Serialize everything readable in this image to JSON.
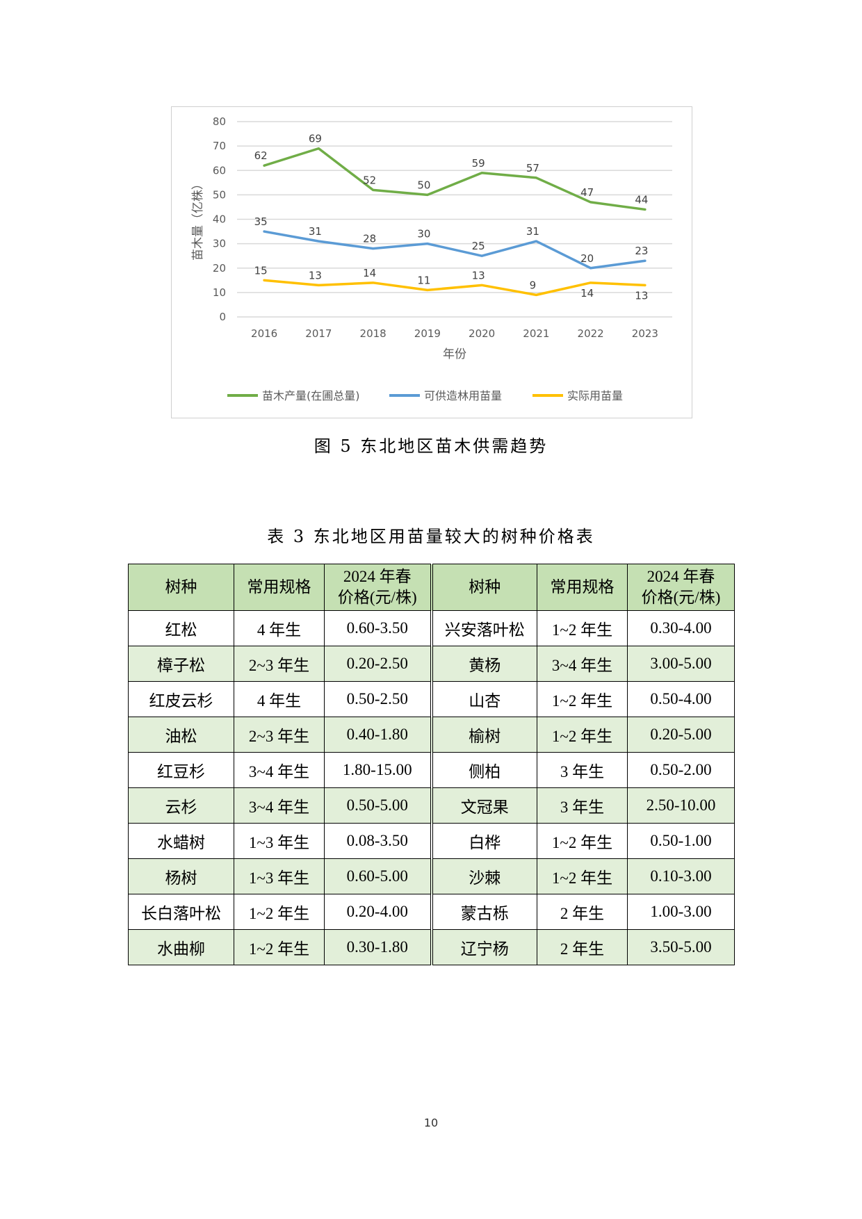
{
  "chart_data": {
    "type": "line",
    "x": [
      "2016",
      "2017",
      "2018",
      "2019",
      "2020",
      "2021",
      "2022",
      "2023"
    ],
    "series": [
      {
        "name": "苗木产量(在圃总量)",
        "color": "#70ad47",
        "values": [
          62,
          69,
          52,
          50,
          59,
          57,
          47,
          44
        ]
      },
      {
        "name": "可供造林用苗量",
        "color": "#5b9bd5",
        "values": [
          35,
          31,
          28,
          30,
          25,
          31,
          20,
          23
        ]
      },
      {
        "name": "实际用苗量",
        "color": "#ffc000",
        "values": [
          15,
          13,
          14,
          11,
          13,
          9,
          14,
          13
        ]
      }
    ],
    "xlabel": "年份",
    "ylabel": "苗木量（亿株）",
    "ylim": [
      0,
      80
    ],
    "yticks": [
      "0",
      "10",
      "20",
      "30",
      "40",
      "50",
      "60",
      "70",
      "80"
    ],
    "grid": true,
    "legend": "bottom",
    "gridColor": "#d9d9d9"
  },
  "figure": {
    "caption": "图 5  东北地区苗木供需趋势"
  },
  "table": {
    "caption": "表 3  东北地区用苗量较大的树种价格表",
    "headers": [
      {
        "l1": "树种",
        "l2": ""
      },
      {
        "l1": "常用规格",
        "l2": ""
      },
      {
        "l1": "2024 年春",
        "l2": "价格(元/株)"
      },
      {
        "l1": "树种",
        "l2": ""
      },
      {
        "l1": "常用规格",
        "l2": ""
      },
      {
        "l1": "2024 年春",
        "l2": "价格(元/株)"
      }
    ],
    "rows": [
      [
        "红松",
        "4 年生",
        "0.60-3.50",
        "兴安落叶松",
        "1~2 年生",
        "0.30-4.00"
      ],
      [
        "樟子松",
        "2~3 年生",
        "0.20-2.50",
        "黄杨",
        "3~4 年生",
        "3.00-5.00"
      ],
      [
        "红皮云杉",
        "4 年生",
        "0.50-2.50",
        "山杏",
        "1~2 年生",
        "0.50-4.00"
      ],
      [
        "油松",
        "2~3 年生",
        "0.40-1.80",
        "榆树",
        "1~2 年生",
        "0.20-5.00"
      ],
      [
        "红豆杉",
        "3~4 年生",
        "1.80-15.00",
        "侧柏",
        "3 年生",
        "0.50-2.00"
      ],
      [
        "云杉",
        "3~4 年生",
        "0.50-5.00",
        "文冠果",
        "3 年生",
        "2.50-10.00"
      ],
      [
        "水蜡树",
        "1~3 年生",
        "0.08-3.50",
        "白桦",
        "1~2 年生",
        "0.50-1.00"
      ],
      [
        "杨树",
        "1~3 年生",
        "0.60-5.00",
        "沙棘",
        "1~2 年生",
        "0.10-3.00"
      ],
      [
        "长白落叶松",
        "1~2 年生",
        "0.20-4.00",
        "蒙古栎",
        "2 年生",
        "1.00-3.00"
      ],
      [
        "水曲柳",
        "1~2 年生",
        "0.30-1.80",
        "辽宁杨",
        "2 年生",
        "3.50-5.00"
      ]
    ]
  },
  "page_number": "10"
}
